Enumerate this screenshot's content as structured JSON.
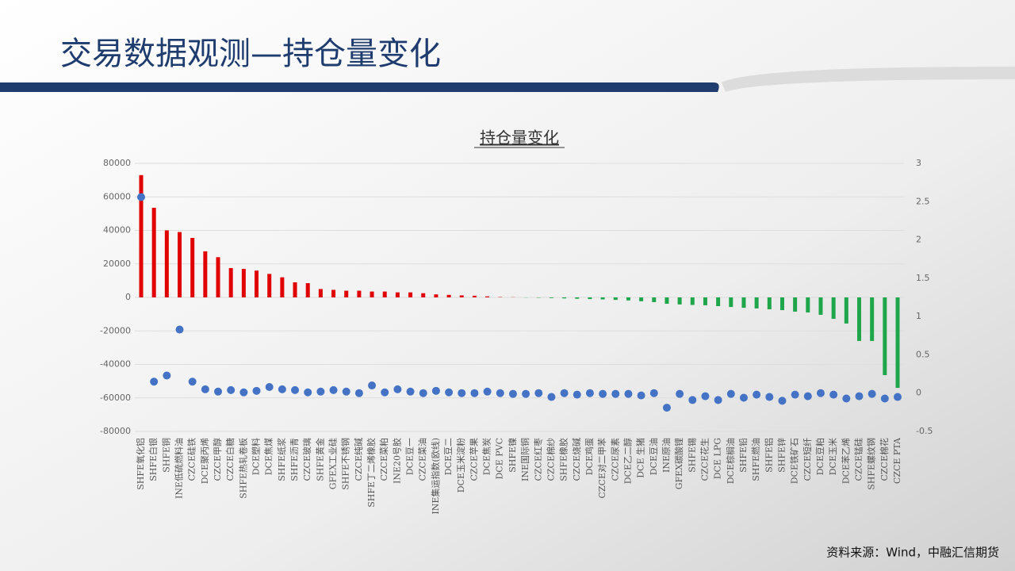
{
  "header": {
    "title": "交易数据观测—持仓量变化"
  },
  "chart_data": {
    "type": "bar",
    "title": "持仓量变化",
    "categories": [
      "SHFE氧化铝",
      "SHFE白银",
      "SHFE铜",
      "INE低硫燃料油",
      "CZCE硅铁",
      "DCE聚丙烯",
      "CZCE甲醇",
      "CZCE白糖",
      "SHFE热轧卷板",
      "DCE塑料",
      "DCE焦煤",
      "SHFE纸浆",
      "SHFE沥青",
      "CZCE玻璃",
      "SHFE黄金",
      "GFEX工业硅",
      "SHFE不锈钢",
      "CZCE纯碱",
      "SHFE丁二烯橡胶",
      "CZCE菜粕",
      "INE20号胶",
      "DCE豆一",
      "CZCE菜油",
      "INE集运指数(欧线)",
      "DCE豆二",
      "DCE玉米淀粉",
      "CZCE苹果",
      "DCE焦炭",
      "DCE PVC",
      "SHFE镍",
      "INE国际铜",
      "CZCE红枣",
      "CZCE棉纱",
      "SHFE橡胶",
      "CZCE烧碱",
      "DCE鸡蛋",
      "CZCE对二甲苯",
      "CZCE尿素",
      "DCE乙二醇",
      "DCE 生猪",
      "DCE豆油",
      "INE原油",
      "GFEX碳酸锂",
      "SHFE锡",
      "CZCE花生",
      "DCE LPG",
      "DCE棕榈油",
      "SHFE铅",
      "SHFE燃油",
      "SHFE铝",
      "SHFE锌",
      "DCE铁矿石",
      "CZCE短纤",
      "DCE豆粕",
      "DCE玉米",
      "DCE苯乙烯",
      "CZCE锰硅",
      "SHFE螺纹钢",
      "CZCE棉花",
      "CZCE PTA"
    ],
    "series": [
      {
        "type": "bar",
        "color_positive": "#e00000",
        "color_negative": "#1fa64a",
        "values": [
          73000,
          53500,
          40000,
          39000,
          35500,
          27500,
          24000,
          17500,
          17000,
          16000,
          14000,
          12000,
          9000,
          8500,
          5000,
          4500,
          4000,
          4000,
          3500,
          3500,
          3000,
          3000,
          2500,
          1800,
          1500,
          1200,
          1000,
          600,
          200,
          100,
          -100,
          -200,
          -400,
          -600,
          -800,
          -1000,
          -1200,
          -1500,
          -1800,
          -2300,
          -2800,
          -3800,
          -4200,
          -4500,
          -4700,
          -5200,
          -5700,
          -6200,
          -6600,
          -7100,
          -7600,
          -8500,
          -9000,
          -10400,
          -12800,
          -15600,
          -26000,
          -26000,
          -46400,
          -54000
        ]
      },
      {
        "type": "scatter",
        "axis": "y2",
        "color": "#4472c4",
        "values": [
          2.56,
          0.15,
          0.23,
          0.83,
          0.15,
          0.05,
          0.02,
          0.04,
          0.01,
          0.03,
          0.08,
          0.05,
          0.04,
          0.01,
          0.02,
          0.04,
          0.02,
          0,
          0.1,
          0.01,
          0.05,
          0.02,
          0,
          0.03,
          0.01,
          0,
          0,
          0.02,
          0,
          -0.01,
          -0.01,
          0,
          -0.05,
          0,
          -0.02,
          0,
          -0.01,
          -0.01,
          -0.01,
          -0.03,
          0,
          -0.19,
          -0.01,
          -0.09,
          -0.04,
          -0.09,
          -0.01,
          -0.06,
          -0.02,
          -0.05,
          -0.1,
          -0.02,
          -0.04,
          0,
          -0.02,
          -0.07,
          -0.04,
          -0.01,
          -0.07,
          -0.05
        ]
      }
    ],
    "ylim": [
      -80000,
      80000
    ],
    "yticks": [
      -80000,
      -60000,
      -40000,
      -20000,
      0,
      20000,
      40000,
      60000,
      80000
    ],
    "y2lim": [
      -0.5,
      3
    ],
    "y2ticks": [
      -0.5,
      0,
      0.5,
      1,
      1.5,
      2,
      2.5,
      3
    ],
    "grid": true
  },
  "footer": {
    "source": "资料来源：Wind，中融汇信期货"
  }
}
